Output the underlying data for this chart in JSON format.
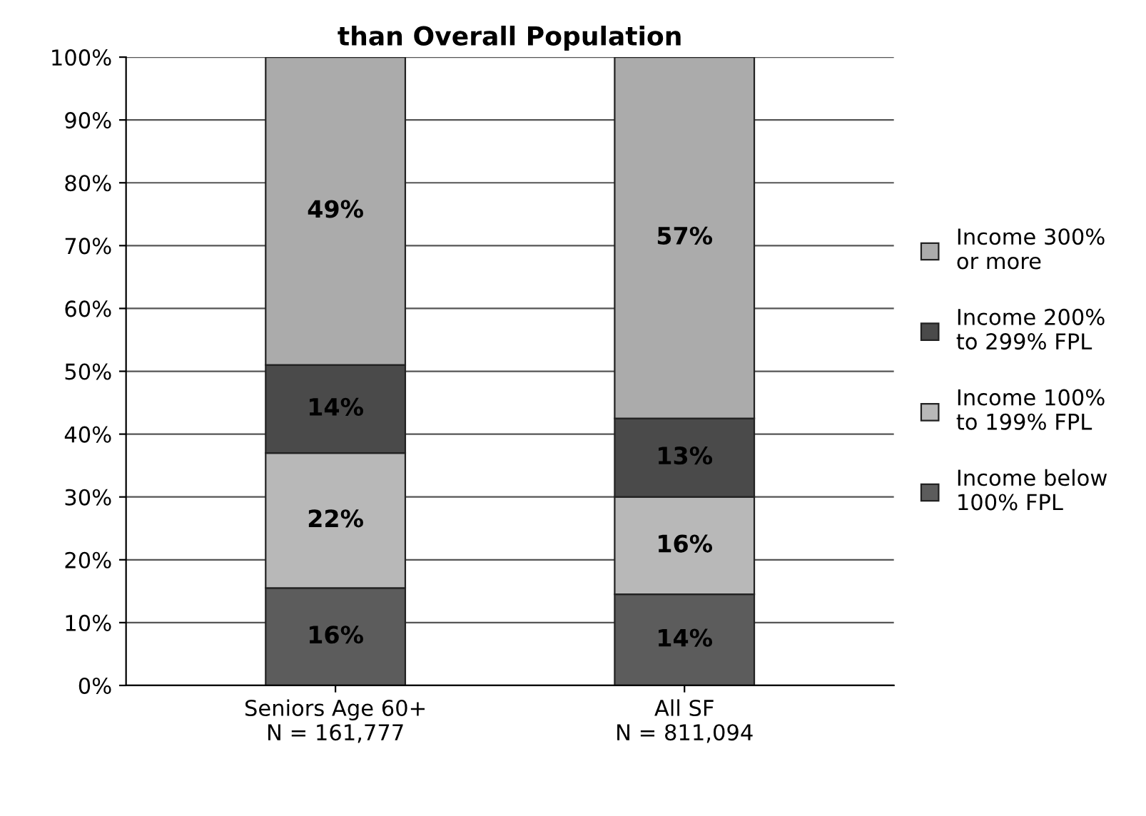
{
  "chart_data": {
    "type": "bar",
    "title": "than Overall Population",
    "stacked": true,
    "grid": "y",
    "legend": "right",
    "categories": [
      "Seniors Age 60+\nN = 161,777",
      "All SF\nN = 811,094"
    ],
    "series": [
      {
        "name": "Income below\n100% FPL",
        "color": "#5c5c5c",
        "values": [
          15.5,
          14.5
        ],
        "value_labels": [
          "16%",
          "14%"
        ]
      },
      {
        "name": "Income 100%\nto 199% FPL",
        "color": "#b8b8b8",
        "values": [
          21.5,
          15.5
        ],
        "value_labels": [
          "22%",
          "16%"
        ]
      },
      {
        "name": "Income 200%\nto 299% FPL",
        "color": "#4a4a4a",
        "values": [
          14,
          12.5
        ],
        "value_labels": [
          "14%",
          "13%"
        ]
      },
      {
        "name": "Income 300%\nor more",
        "color": "#ababab",
        "values": [
          49,
          57.5
        ],
        "value_labels": [
          "49%",
          "57%"
        ]
      }
    ],
    "ylim": [
      0,
      100
    ],
    "yticks": [
      {
        "value": 0,
        "label": "0%"
      },
      {
        "value": 10,
        "label": "10%"
      },
      {
        "value": 20,
        "label": "20%"
      },
      {
        "value": 30,
        "label": "30%"
      },
      {
        "value": 40,
        "label": "40%"
      },
      {
        "value": 50,
        "label": "50%"
      },
      {
        "value": 60,
        "label": "60%"
      },
      {
        "value": 70,
        "label": "70%"
      },
      {
        "value": 80,
        "label": "80%"
      },
      {
        "value": 90,
        "label": "90%"
      },
      {
        "value": 100,
        "label": "100%"
      }
    ]
  }
}
